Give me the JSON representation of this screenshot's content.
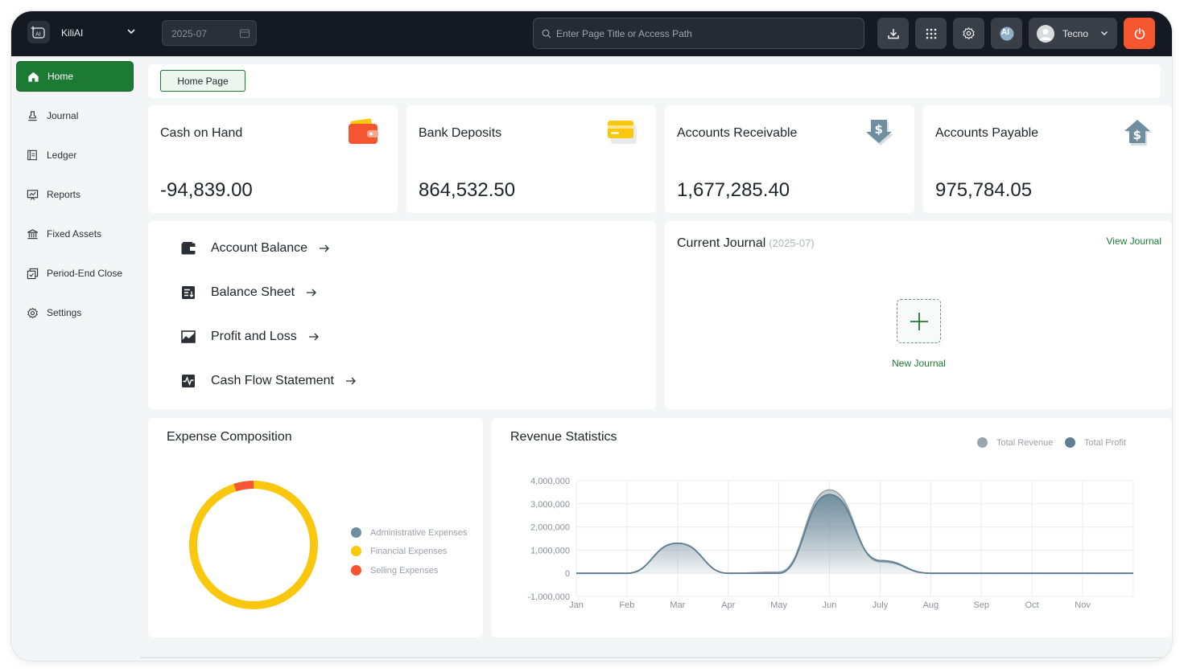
{
  "app": {
    "name": "KiliAI",
    "period": "2025-07"
  },
  "search": {
    "placeholder": "Enter Page Title or Access Path"
  },
  "toolbar": {
    "icons": [
      "download-icon",
      "apps-grid-icon",
      "gear-icon",
      "ai-icon"
    ],
    "ai_label": "AI"
  },
  "user": {
    "name": "Tecno"
  },
  "colors": {
    "brand": "#1d7a35",
    "topbar": "#151a22",
    "power": "#f5552f",
    "accent_yellow": "#f9c80e"
  },
  "sidebar": {
    "items": [
      {
        "label": "Home",
        "icon": "home-icon",
        "active": true
      },
      {
        "label": "Journal",
        "icon": "stamp-icon",
        "active": false
      },
      {
        "label": "Ledger",
        "icon": "ledger-icon",
        "active": false
      },
      {
        "label": "Reports",
        "icon": "reports-icon",
        "active": false
      },
      {
        "label": "Fixed Assets",
        "icon": "bank-icon",
        "active": false
      },
      {
        "label": "Period-End Close",
        "icon": "period-close-icon",
        "active": false
      },
      {
        "label": "Settings",
        "icon": "gear-icon",
        "active": false
      }
    ]
  },
  "breadcrumb": {
    "current": "Home Page"
  },
  "stats": [
    {
      "title": "Cash on Hand",
      "value": "-94,839.00",
      "icon": "wallet-icon"
    },
    {
      "title": "Bank Deposits",
      "value": "864,532.50",
      "icon": "card-icon"
    },
    {
      "title": "Accounts Receivable",
      "value": "1,677,285.40",
      "icon": "dollar-down-icon"
    },
    {
      "title": "Accounts Payable",
      "value": "975,784.05",
      "icon": "dollar-up-icon"
    }
  ],
  "quick_links": [
    {
      "label": "Account Balance",
      "icon": "wallet-icon"
    },
    {
      "label": "Balance Sheet",
      "icon": "sheet-icon"
    },
    {
      "label": "Profit and Loss",
      "icon": "line-chart-icon"
    },
    {
      "label": "Cash Flow Statement",
      "icon": "pulse-icon"
    }
  ],
  "journal": {
    "title": "Current Journal",
    "period": "(2025-07)",
    "view_link": "View Journal",
    "new_label": "New Journal"
  },
  "chart_data": [
    {
      "type": "pie",
      "title": "Expense Composition",
      "donut": true,
      "labels": [
        "Administrative Expenses",
        "Financial Expenses",
        "Selling Expenses"
      ],
      "values": [
        0,
        95,
        5
      ],
      "colors": [
        "#6f8fa0",
        "#f9c80e",
        "#f5552f"
      ],
      "legend": "right"
    },
    {
      "type": "area",
      "title": "Revenue Statistics",
      "categories": [
        "Jan",
        "Feb",
        "Mar",
        "Apr",
        "May",
        "Jun",
        "July",
        "Aug",
        "Sep",
        "Oct",
        "Nov"
      ],
      "series": [
        {
          "name": "Total Revenue",
          "color": "#9aa6ae",
          "values": [
            0,
            0,
            1300000,
            0,
            50000,
            3600000,
            500000,
            0,
            0,
            0,
            0
          ]
        },
        {
          "name": "Total Profit",
          "color": "#5d7f91",
          "values": [
            0,
            0,
            1300000,
            0,
            0,
            3400000,
            550000,
            0,
            0,
            0,
            0
          ]
        }
      ],
      "yticks": [
        "4,000,000",
        "3,000,000",
        "2,000,000",
        "1,000,000",
        "0",
        "-1,000,000"
      ],
      "ylim": [
        -1000000,
        4000000
      ],
      "legend": "top-right",
      "grid": true
    }
  ]
}
